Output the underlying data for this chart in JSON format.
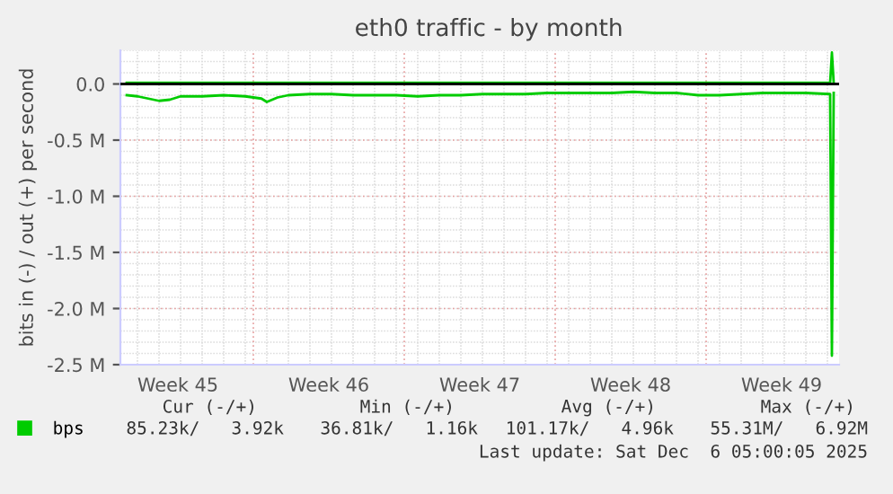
{
  "chart_data": {
    "type": "line",
    "title": "eth0 traffic - by month",
    "ylabel": "bits in (-) / out (+) per second",
    "x": [
      "2025-11-03T12:00",
      "2025-11-04T00:00",
      "2025-11-04T12:00",
      "2025-11-05T00:00",
      "2025-11-05T12:00",
      "2025-11-06T00:00",
      "2025-11-07T00:00",
      "2025-11-08T00:00",
      "2025-11-09T00:00",
      "2025-11-09T18:00",
      "2025-11-10T00:00",
      "2025-11-10T12:00",
      "2025-11-11T00:00",
      "2025-11-12T00:00",
      "2025-11-13T00:00",
      "2025-11-14T00:00",
      "2025-11-15T00:00",
      "2025-11-16T00:00",
      "2025-11-17T00:00",
      "2025-11-18T00:00",
      "2025-11-19T00:00",
      "2025-11-20T00:00",
      "2025-11-21T00:00",
      "2025-11-22T00:00",
      "2025-11-23T00:00",
      "2025-11-24T00:00",
      "2025-11-25T00:00",
      "2025-11-26T00:00",
      "2025-11-27T00:00",
      "2025-11-28T00:00",
      "2025-11-29T00:00",
      "2025-11-30T00:00",
      "2025-12-01T00:00",
      "2025-12-02T00:00",
      "2025-12-03T00:00",
      "2025-12-04T00:00",
      "2025-12-05T00:00",
      "2025-12-06T03:00",
      "2025-12-06T05:00",
      "2025-12-06T07:00"
    ],
    "series": [
      {
        "name": "bps",
        "color": "#00cc00",
        "values": [
          -0.1,
          -0.11,
          -0.13,
          -0.15,
          -0.14,
          -0.11,
          -0.11,
          -0.1,
          -0.11,
          -0.13,
          -0.16,
          -0.12,
          -0.1,
          -0.09,
          -0.09,
          -0.1,
          -0.1,
          -0.1,
          -0.11,
          -0.1,
          -0.1,
          -0.09,
          -0.09,
          -0.09,
          -0.08,
          -0.08,
          -0.08,
          -0.08,
          -0.07,
          -0.08,
          -0.08,
          -0.1,
          -0.1,
          -0.09,
          -0.08,
          -0.08,
          -0.08,
          -0.09,
          -2.42,
          -0.08
        ]
      },
      {
        "color": "#00cc00",
        "values": [
          0.01,
          0.01,
          0.01,
          0.01,
          0.01,
          0.01,
          0.01,
          0.01,
          0.01,
          0.01,
          0.01,
          0.01,
          0.01,
          0.01,
          0.01,
          0.01,
          0.01,
          0.01,
          0.01,
          0.01,
          0.01,
          0.01,
          0.01,
          0.01,
          0.01,
          0.01,
          0.01,
          0.01,
          0.01,
          0.01,
          0.01,
          0.01,
          0.01,
          0.01,
          0.01,
          0.01,
          0.01,
          0.01,
          0.28,
          0.01
        ]
      }
    ],
    "xlim": [
      "2025-11-03T05:00",
      "2025-12-06T13:00"
    ],
    "xticks": [
      {
        "value": "2025-11-05T21:00",
        "label": "Week 45"
      },
      {
        "value": "2025-11-12T21:00",
        "label": "Week 46"
      },
      {
        "value": "2025-11-19T21:00",
        "label": "Week 47"
      },
      {
        "value": "2025-11-26T21:00",
        "label": "Week 48"
      },
      {
        "value": "2025-12-03T21:00",
        "label": "Week 49"
      }
    ],
    "ylim": [
      -2.5,
      0.3
    ],
    "yticks": [
      {
        "value": 0,
        "label": "0.0"
      },
      {
        "value": -0.5,
        "label": "-0.5 M"
      },
      {
        "value": -1.0,
        "label": "-1.0 M"
      },
      {
        "value": -1.5,
        "label": "-1.5 M"
      },
      {
        "value": -2.0,
        "label": "-2.0 M"
      },
      {
        "value": -2.5,
        "label": "-2.5 M"
      }
    ],
    "ref_lines": [
      {
        "axis": "y",
        "value": 0,
        "color": "#000000"
      }
    ],
    "grid": true,
    "legend": "bottom",
    "marker": "none",
    "line_style": "solid",
    "annotations": [
      "Cur (-/+)",
      "Min (-/+)",
      "Avg (-/+)",
      "Max (-/+)",
      "85.23k/   3.92k",
      "36.81k/   1.16k",
      "101.17k/   4.96k",
      "55.31M/   6.92M",
      "Last update: Sat Dec  6 05:00:05 2025"
    ]
  }
}
